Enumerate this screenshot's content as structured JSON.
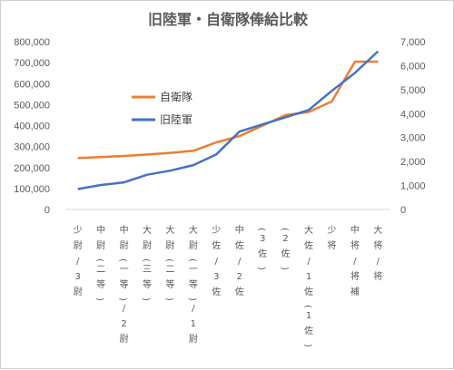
{
  "chart_data": {
    "type": "line",
    "title": "旧陸軍・自衛隊俸給比較",
    "x_categories": [
      "少尉/3尉",
      "中尉(二等)",
      "中尉(一等)/2尉",
      "大尉(三等)",
      "大尉(二等)",
      "大尉(一等)/1尉",
      "少佐/3佐",
      "中佐/2佐",
      "(3佐)",
      "(2佐)",
      "大佐/1佐(1佐)",
      "少将",
      "中将/将補",
      "大将/将"
    ],
    "left_axis": {
      "min": 0,
      "max": 800000,
      "step": 100000,
      "tick_labels": [
        "0",
        "100,000",
        "200,000",
        "300,000",
        "400,000",
        "500,000",
        "600,000",
        "700,000",
        "800,000"
      ]
    },
    "right_axis": {
      "min": 0,
      "max": 7000,
      "step": 1000,
      "tick_labels": [
        "0",
        "1,000",
        "2,000",
        "3,000",
        "4,000",
        "5,000",
        "6,000",
        "7,000"
      ]
    },
    "series": [
      {
        "name": "自衛隊",
        "axis": "left",
        "color": "#ED7D31",
        "values": [
          245000,
          250000,
          255000,
          262000,
          270000,
          280000,
          320000,
          350000,
          400000,
          450000,
          465000,
          515000,
          705000,
          705000
        ]
      },
      {
        "name": "旧陸軍",
        "axis": "right",
        "color": "#4472C4",
        "values": [
          850,
          1020,
          1130,
          1450,
          1620,
          1850,
          2300,
          3250,
          3550,
          3850,
          4150,
          4950,
          5700,
          6600
        ]
      }
    ],
    "legend": {
      "placement": "center-left",
      "entries": [
        "自衛隊",
        "旧陸軍"
      ]
    },
    "grid": false
  }
}
